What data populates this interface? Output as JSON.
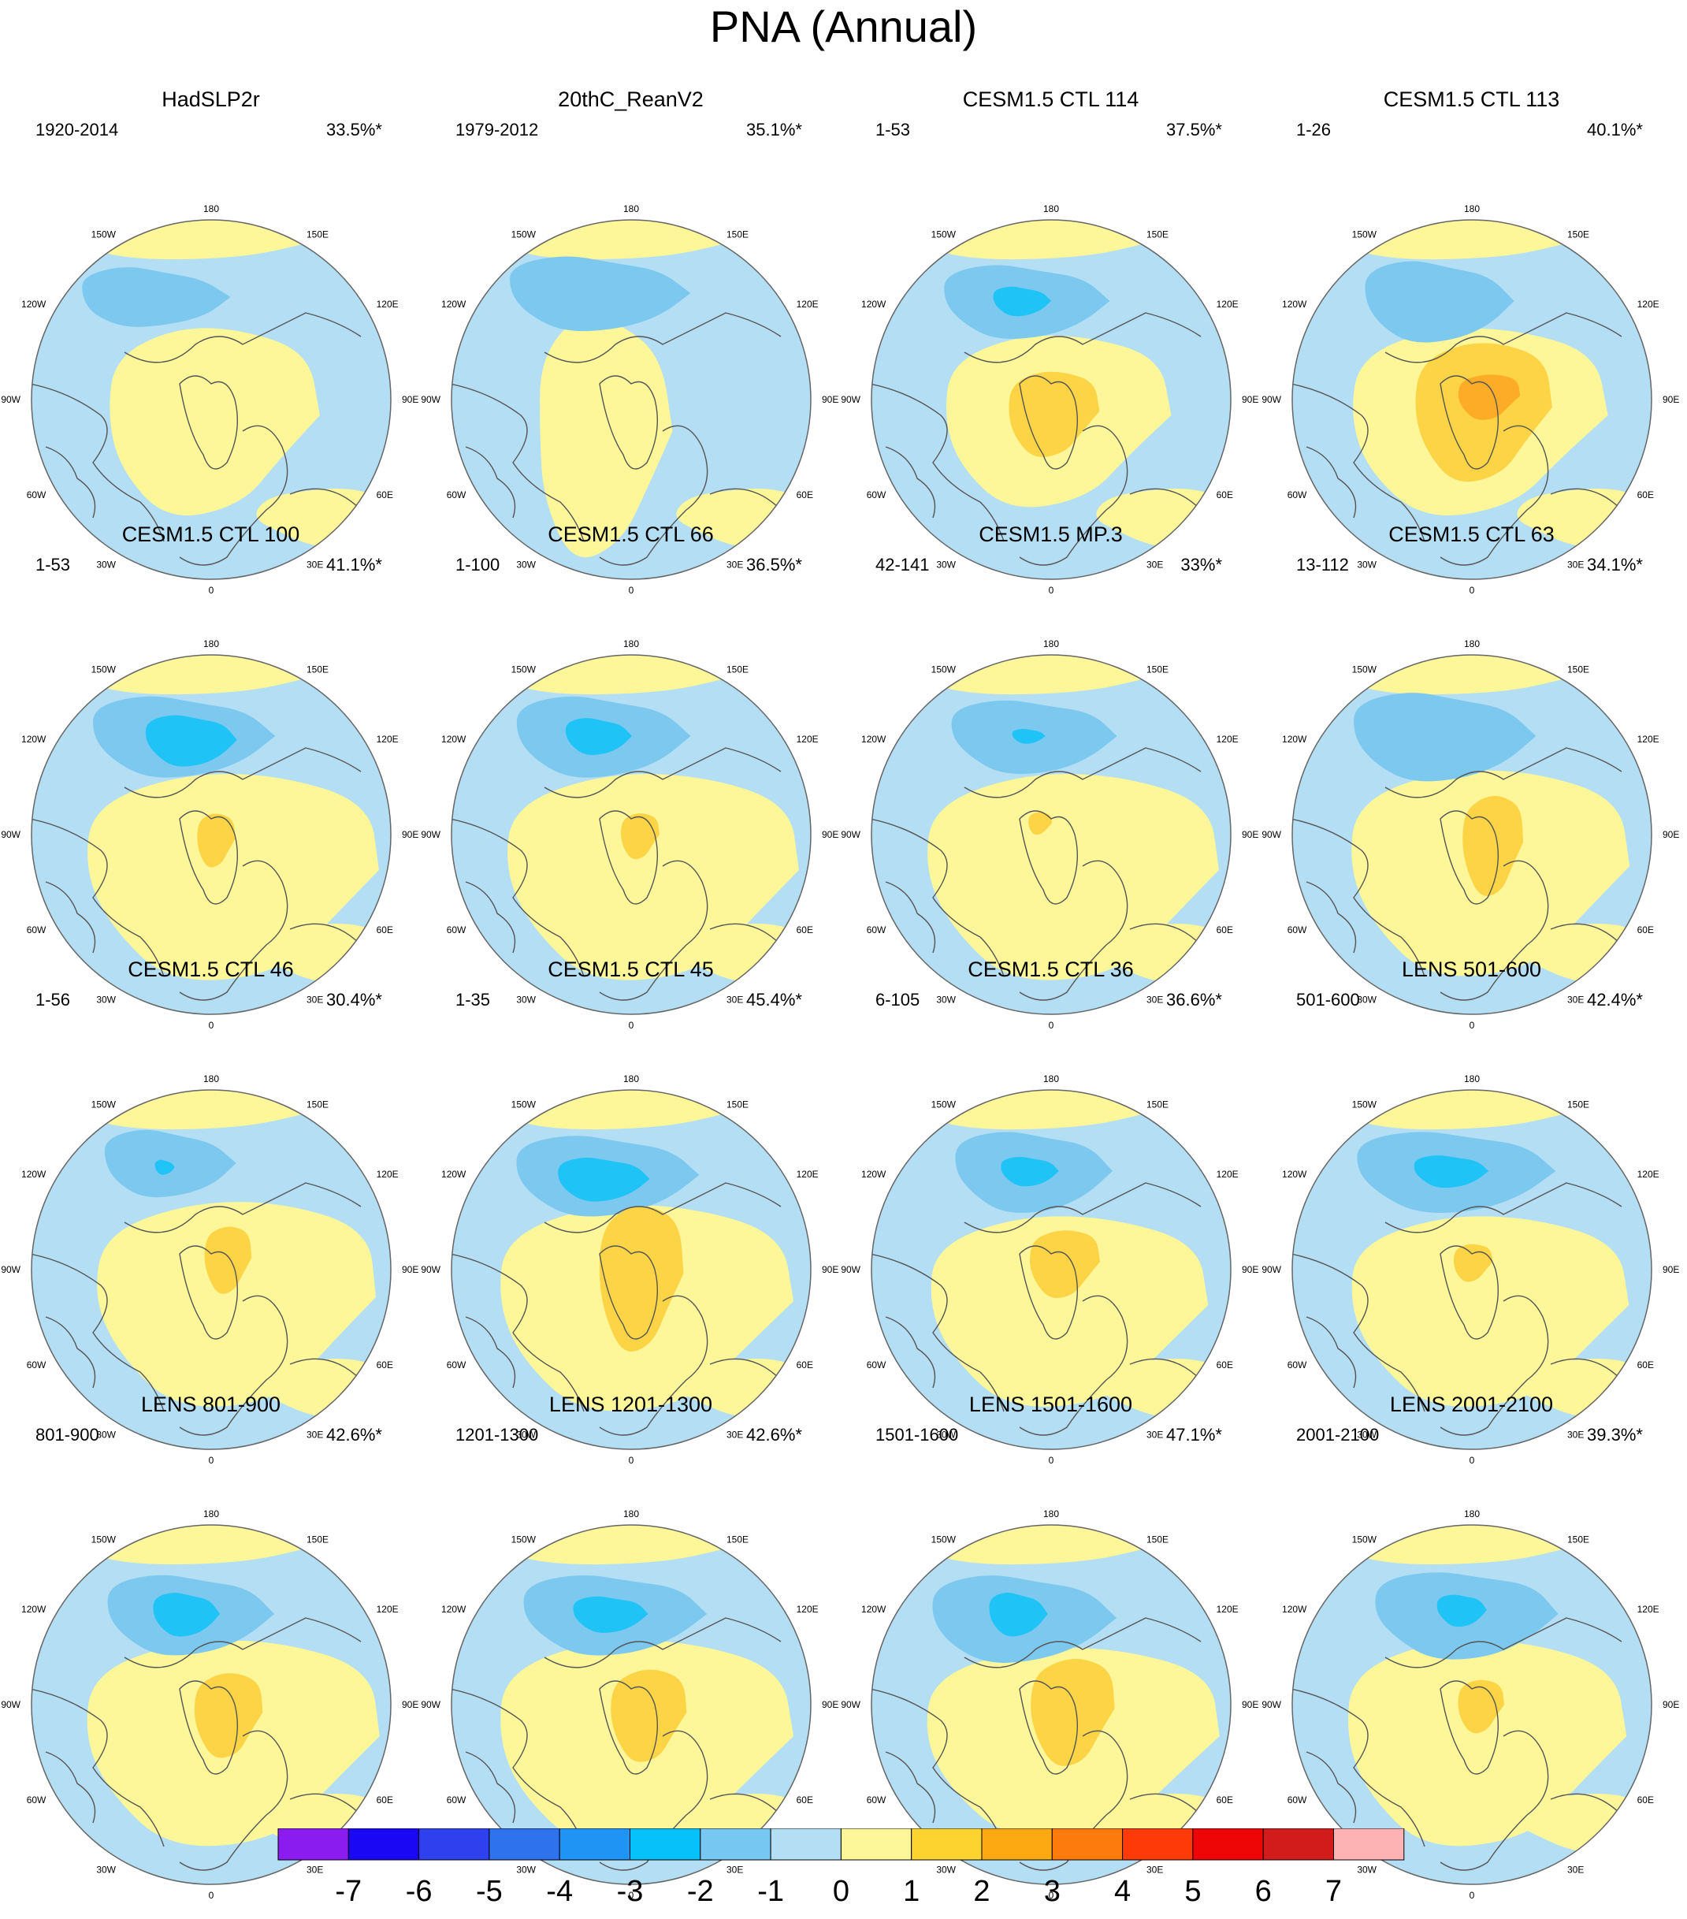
{
  "title": "PNA (Annual)",
  "colors": {
    "ocean_negative": "#b3def3",
    "land_positive": "#fdf79a",
    "neg2": "#7cc8ef",
    "neg3": "#1fc3f5",
    "pos2": "#fdd446",
    "pos3": "#fdac28",
    "coast": "#555555",
    "circle": "#666666"
  },
  "lon_labels": [
    "180",
    "150E",
    "120E",
    "90E",
    "60E",
    "30E",
    "0",
    "30W",
    "60W",
    "90W",
    "120W",
    "150W"
  ],
  "panels": [
    {
      "title": "HadSLP2r",
      "period": "1920-2014",
      "pct": "33.5%*"
    },
    {
      "title": "20thC_ReanV2",
      "period": "1979-2012",
      "pct": "35.1%*"
    },
    {
      "title": "CESM1.5 CTL 114",
      "period": "1-53",
      "pct": "37.5%*"
    },
    {
      "title": "CESM1.5 CTL 113",
      "period": "1-26",
      "pct": "40.1%*"
    },
    {
      "title": "CESM1.5 CTL 100",
      "period": "1-53",
      "pct": "41.1%*"
    },
    {
      "title": "CESM1.5 CTL 66",
      "period": "1-100",
      "pct": "36.5%*"
    },
    {
      "title": "CESM1.5 MP.3",
      "period": "42-141",
      "pct": "33%*"
    },
    {
      "title": "CESM1.5 CTL 63",
      "period": "13-112",
      "pct": "34.1%*"
    },
    {
      "title": "CESM1.5 CTL 46",
      "period": "1-56",
      "pct": "30.4%*"
    },
    {
      "title": "CESM1.5 CTL 45",
      "period": "1-35",
      "pct": "45.4%*"
    },
    {
      "title": "CESM1.5 CTL 36",
      "period": "6-105",
      "pct": "36.6%*"
    },
    {
      "title": "LENS 501-600",
      "period": "501-600",
      "pct": "42.4%*"
    },
    {
      "title": "LENS 801-900",
      "period": "801-900",
      "pct": "42.6%*"
    },
    {
      "title": "LENS 1201-1300",
      "period": "1201-1300",
      "pct": "42.6%*"
    },
    {
      "title": "LENS 1501-1600",
      "period": "1501-1600",
      "pct": "47.1%*"
    },
    {
      "title": "LENS 2001-2100",
      "period": "2001-2100",
      "pct": "39.3%*"
    }
  ],
  "colorbar": {
    "colors": [
      "#8a1cf0",
      "#1a08f5",
      "#2f41ee",
      "#2f72ee",
      "#1f94f5",
      "#07c2fa",
      "#76c7f2",
      "#b3def3",
      "#fdf79a",
      "#fdd32f",
      "#fdaa12",
      "#fd7a0c",
      "#fd3a08",
      "#ee0606",
      "#d21c1c",
      "#fdb3b3"
    ],
    "labels": [
      "-7",
      "-6",
      "-5",
      "-4",
      "-3",
      "-2",
      "-1",
      "0",
      "1",
      "2",
      "3",
      "4",
      "5",
      "6",
      "7"
    ]
  }
}
